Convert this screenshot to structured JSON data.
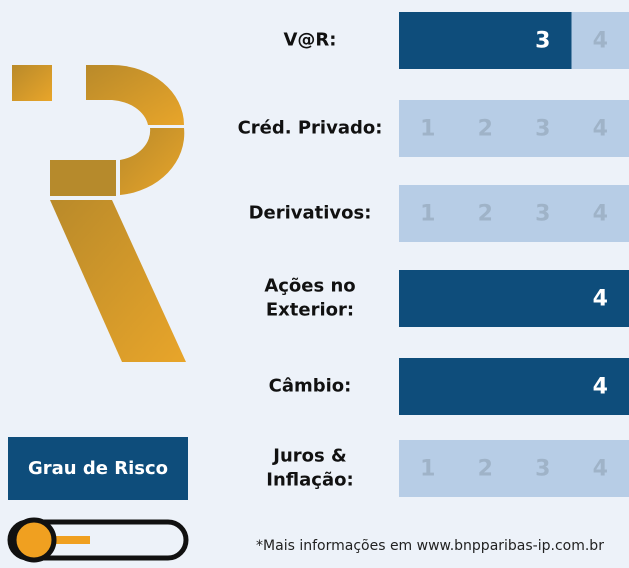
{
  "rows": [
    {
      "label": [
        "V@R:"
      ],
      "level": 3
    },
    {
      "label": [
        "Créd. Privado:"
      ],
      "level": null
    },
    {
      "label": [
        "Derivativos:"
      ],
      "level": null
    },
    {
      "label": [
        "Ações no",
        "Exterior:"
      ],
      "level": 4
    },
    {
      "label": [
        "Câmbio:"
      ],
      "level": 4
    },
    {
      "label": [
        "Juros &",
        "Inflação:"
      ],
      "level": null
    }
  ],
  "scale": [
    1,
    2,
    3,
    4
  ],
  "button": "Grau de Risco",
  "footer": "*Mais informações em www.bnpparibas-ip.com.br"
}
